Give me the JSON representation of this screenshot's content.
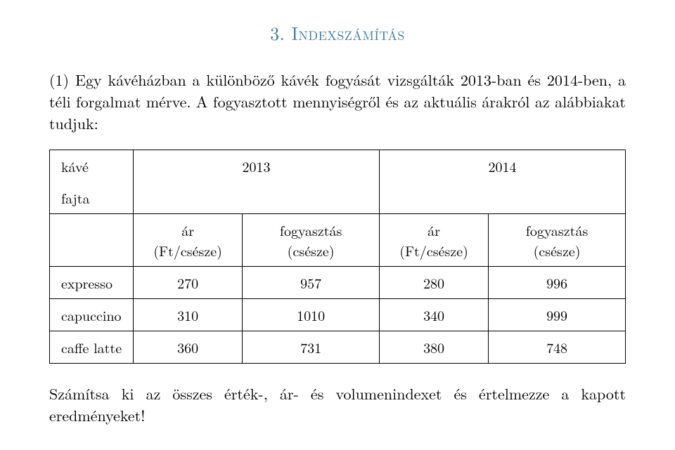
{
  "section": {
    "number": "3.",
    "title": "Indexszámítás",
    "title_color": "#3b7aa6"
  },
  "problem": {
    "number": "(1)",
    "text_part1": "Egy kávéházban a különböző kávék fogyását vizsgálták 2013-ban és 2014-ben, a téli forgalmat mérve. A fogyasztott mennyiségről és az aktuális árakról az alábbiakat tudjuk:"
  },
  "table": {
    "corner_top": "kávé",
    "corner_bottom": "fajta",
    "year1": "2013",
    "year2": "2014",
    "sub_headers": {
      "c1": "ár (Ft/csésze)",
      "c2": "fogyasztás (csésze)",
      "c3": "ár (Ft/csésze)",
      "c4": "fogyasztás (csésze)"
    },
    "rows": [
      {
        "name": "expresso",
        "p1": "270",
        "q1": "957",
        "p2": "280",
        "q2": "996"
      },
      {
        "name": "capuccino",
        "p1": "310",
        "q1": "1010",
        "p2": "340",
        "q2": "999"
      },
      {
        "name": "caffe latte",
        "p1": "360",
        "q1": "731",
        "p2": "380",
        "q2": "748"
      }
    ]
  },
  "task": "Számítsa ki az összes érték-, ár- és volumenindexet és értelmezze a kapott eredményeket!"
}
